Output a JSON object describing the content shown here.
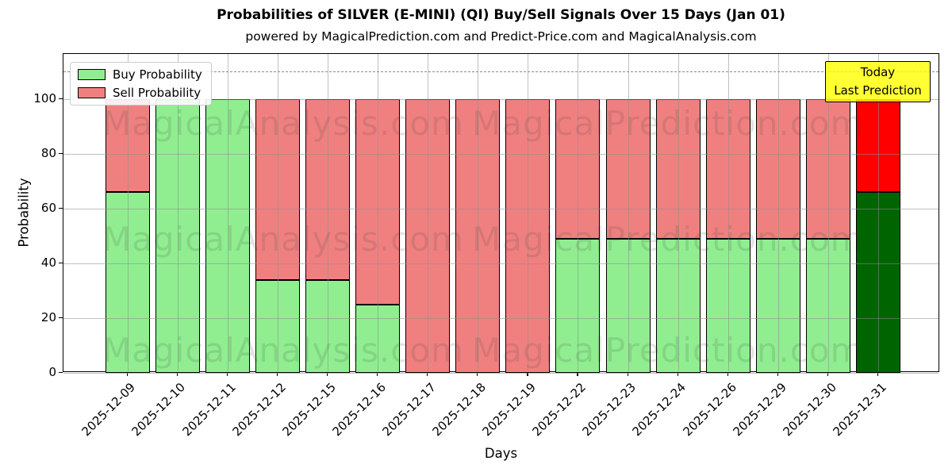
{
  "header": {
    "title": "Probabilities of SILVER (E-MINI) (QI) Buy/Sell Signals Over 15 Days (Jan 01)",
    "subtitle": "powered by MagicalPrediction.com and Predict-Price.com and MagicalAnalysis.com"
  },
  "annotation": {
    "line1": "Today",
    "line2": "Last Prediction"
  },
  "watermarks": {
    "left_text": "MagicalAnalysis.com",
    "right_text": "MagicalPrediction.com"
  },
  "chart_data": {
    "type": "bar",
    "stacked": true,
    "title": "Probabilities of SILVER (E-MINI) (QI) Buy/Sell Signals Over 15 Days (Jan 01)",
    "xlabel": "Days",
    "ylabel": "Probability",
    "categories": [
      "2025-12-09",
      "2025-12-10",
      "2025-12-11",
      "2025-12-12",
      "2025-12-15",
      "2025-12-16",
      "2025-12-17",
      "2025-12-18",
      "2025-12-19",
      "2025-12-22",
      "2025-12-23",
      "2025-12-24",
      "2025-12-26",
      "2025-12-29",
      "2025-12-30",
      "2025-12-31"
    ],
    "series": [
      {
        "name": "Buy Probability",
        "color": "#90ee90",
        "values": [
          66,
          100,
          100,
          34,
          34,
          25,
          0,
          0,
          0,
          49,
          49,
          49,
          49,
          49,
          49,
          66
        ]
      },
      {
        "name": "Sell Probability",
        "color": "#f08080",
        "values": [
          34,
          0,
          0,
          66,
          66,
          75,
          100,
          100,
          100,
          51,
          51,
          51,
          51,
          51,
          51,
          34
        ]
      }
    ],
    "today_bar": {
      "category": "2025-12-31",
      "index": 15,
      "buy_color": "#006400",
      "sell_color": "#ff0000",
      "label": "Today Last Prediction"
    },
    "yticks": [
      0,
      20,
      40,
      60,
      80,
      100
    ],
    "ylim": [
      0,
      116.5
    ],
    "dashed_line_y": 110,
    "grid": true,
    "legend_position": "upper left",
    "bar_edge_color": "#000000",
    "grid_color": "#b0b0b0",
    "dashed_line_color": "#8a8a8a",
    "annotation_bg_color": "#ffff00"
  }
}
